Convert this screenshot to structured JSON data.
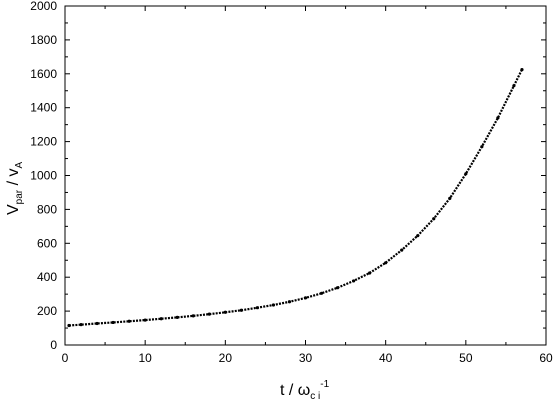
{
  "chart_data": {
    "type": "scatter",
    "title": "",
    "xlabel": {
      "main": "t / ω",
      "subscript": "c i",
      "superscript": "-1"
    },
    "ylabel": {
      "v1": "V",
      "sub1": "par",
      "slash": " / ",
      "v2": "v",
      "sub2": "A"
    },
    "xlim": [
      0,
      60
    ],
    "ylim": [
      0,
      2000
    ],
    "xticks": [
      0,
      10,
      20,
      30,
      40,
      50,
      60
    ],
    "yticks": [
      0,
      200,
      400,
      600,
      800,
      1000,
      1200,
      1400,
      1600,
      1800,
      2000
    ],
    "grid": false,
    "legend": "none",
    "marker_color": "#000000",
    "series": [
      {
        "x": [
          0.5,
          2,
          4,
          6,
          8,
          10,
          12,
          14,
          16,
          18,
          20,
          22,
          24,
          26,
          28,
          30,
          32,
          34,
          36,
          38,
          40,
          42,
          44,
          46,
          48,
          50,
          52,
          54,
          56,
          57
        ],
        "y": [
          115,
          120,
          127,
          133,
          140,
          147,
          155,
          163,
          172,
          182,
          193,
          205,
          220,
          236,
          255,
          278,
          305,
          338,
          378,
          425,
          485,
          560,
          645,
          745,
          865,
          1010,
          1170,
          1340,
          1530,
          1625
        ]
      }
    ]
  }
}
